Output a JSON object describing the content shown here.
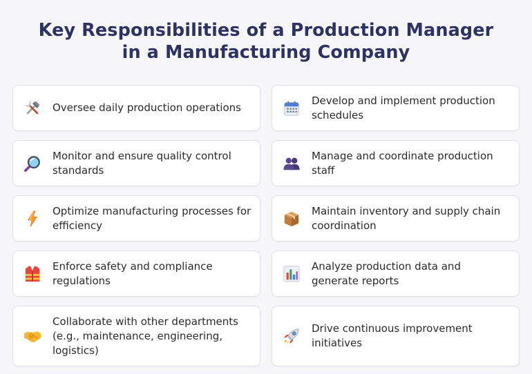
{
  "title": {
    "line1": "Key Responsibilities of a Production Manager",
    "line2": "in a Manufacturing Company"
  },
  "cards": [
    {
      "icon": "tools-icon",
      "text": "Oversee daily production operations"
    },
    {
      "icon": "calendar-icon",
      "text": "Develop and implement production schedules"
    },
    {
      "icon": "magnifier-icon",
      "text": "Monitor and ensure quality control standards"
    },
    {
      "icon": "people-icon",
      "text": "Manage and coordinate production staff"
    },
    {
      "icon": "lightning-icon",
      "text": "Optimize manufacturing processes for efficiency"
    },
    {
      "icon": "package-icon",
      "text": "Maintain inventory and supply chain coordination"
    },
    {
      "icon": "safety-vest-icon",
      "text": "Enforce safety and compliance regulations"
    },
    {
      "icon": "bar-chart-icon",
      "text": "Analyze production data and generate reports"
    },
    {
      "icon": "handshake-icon",
      "text": "Collaborate with other departments (e.g., maintenance, engineering, logistics)"
    },
    {
      "icon": "rocket-icon",
      "text": "Drive continuous improvement initiatives"
    }
  ],
  "colors": {
    "title": "#2c3364",
    "background": "#f7f7f9",
    "card": "#ffffff",
    "card_border": "#dfe1e6"
  }
}
